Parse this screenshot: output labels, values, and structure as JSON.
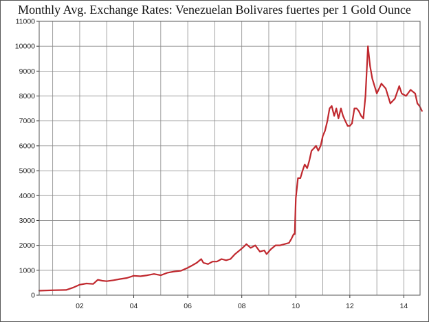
{
  "chart_data": {
    "type": "line",
    "title": "Monthly Avg. Exchange Rates: Venezuelan Bolivares fuertes per 1 Gold Ounce",
    "xlabel": "",
    "ylabel": "",
    "xlim": [
      2000.5,
      2014.6
    ],
    "ylim": [
      0,
      11000
    ],
    "y_ticks": [
      0,
      1000,
      2000,
      3000,
      4000,
      5000,
      6000,
      7000,
      8000,
      9000,
      10000,
      11000
    ],
    "x_ticks": [
      {
        "value": 2002,
        "label": "02"
      },
      {
        "value": 2004,
        "label": "04"
      },
      {
        "value": 2006,
        "label": "06"
      },
      {
        "value": 2008,
        "label": "08"
      },
      {
        "value": 2010,
        "label": "10"
      },
      {
        "value": 2012,
        "label": "12"
      },
      {
        "value": 2014,
        "label": "14"
      }
    ],
    "x_gridlines": [
      2001,
      2002,
      2003,
      2004,
      2005,
      2006,
      2007,
      2008,
      2009,
      2010,
      2011,
      2012,
      2013,
      2014
    ],
    "grid": true,
    "line_color": "#c0282e",
    "series": [
      {
        "x": [
          2000.5,
          2001.0,
          2001.5,
          2001.75,
          2002.0,
          2002.25,
          2002.5,
          2002.67,
          2002.83,
          2003.0,
          2003.25,
          2003.5,
          2003.75,
          2004.0,
          2004.25,
          2004.5,
          2004.75,
          2005.0,
          2005.25,
          2005.5,
          2005.75,
          2006.0,
          2006.17,
          2006.33,
          2006.5,
          2006.58,
          2006.75,
          2006.92,
          2007.08,
          2007.25,
          2007.42,
          2007.58,
          2007.75,
          2007.92,
          2008.08,
          2008.17,
          2008.33,
          2008.5,
          2008.67,
          2008.83,
          2008.92,
          2009.08,
          2009.25,
          2009.42,
          2009.58,
          2009.75,
          2009.83,
          2009.92,
          2009.96,
          2010.0,
          2010.08,
          2010.17,
          2010.25,
          2010.33,
          2010.42,
          2010.5,
          2010.58,
          2010.67,
          2010.75,
          2010.83,
          2010.92,
          2011.0,
          2011.08,
          2011.17,
          2011.25,
          2011.33,
          2011.42,
          2011.5,
          2011.58,
          2011.67,
          2011.75,
          2011.83,
          2011.92,
          2012.0,
          2012.08,
          2012.17,
          2012.25,
          2012.33,
          2012.42,
          2012.5,
          2012.58,
          2012.67,
          2012.75,
          2012.83,
          2013.0,
          2013.17,
          2013.33,
          2013.5,
          2013.67,
          2013.83,
          2013.92,
          2014.08,
          2014.25,
          2014.42,
          2014.5,
          2014.58,
          2014.67
        ],
        "values": [
          180,
          200,
          210,
          300,
          420,
          470,
          450,
          620,
          580,
          560,
          600,
          650,
          690,
          780,
          760,
          800,
          850,
          800,
          900,
          950,
          980,
          1100,
          1200,
          1300,
          1450,
          1300,
          1250,
          1350,
          1350,
          1450,
          1400,
          1450,
          1650,
          1800,
          1950,
          2050,
          1900,
          2000,
          1750,
          1800,
          1650,
          1850,
          2000,
          2000,
          2050,
          2100,
          2250,
          2450,
          2450,
          3900,
          4700,
          4700,
          5000,
          5250,
          5100,
          5400,
          5800,
          5900,
          6000,
          5800,
          6000,
          6400,
          6600,
          7000,
          7500,
          7600,
          7200,
          7500,
          7100,
          7500,
          7200,
          7000,
          6800,
          6800,
          6900,
          7500,
          7500,
          7400,
          7200,
          7100,
          8000,
          10000,
          9200,
          8700,
          8100,
          8500,
          8300,
          7700,
          7900,
          8400,
          8100,
          8000,
          8250,
          8100,
          7700,
          7600,
          7400
        ]
      }
    ]
  }
}
